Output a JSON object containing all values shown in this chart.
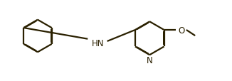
{
  "background_color": "#ffffff",
  "line_color": "#2a2000",
  "line_width": 1.6,
  "dbo": 0.018,
  "text_color": "#2a2000",
  "font_size": 8.5,
  "figsize": [
    3.26,
    1.15
  ],
  "dpi": 100,
  "xlim": [
    0,
    10
  ],
  "ylim": [
    0,
    3.53
  ]
}
